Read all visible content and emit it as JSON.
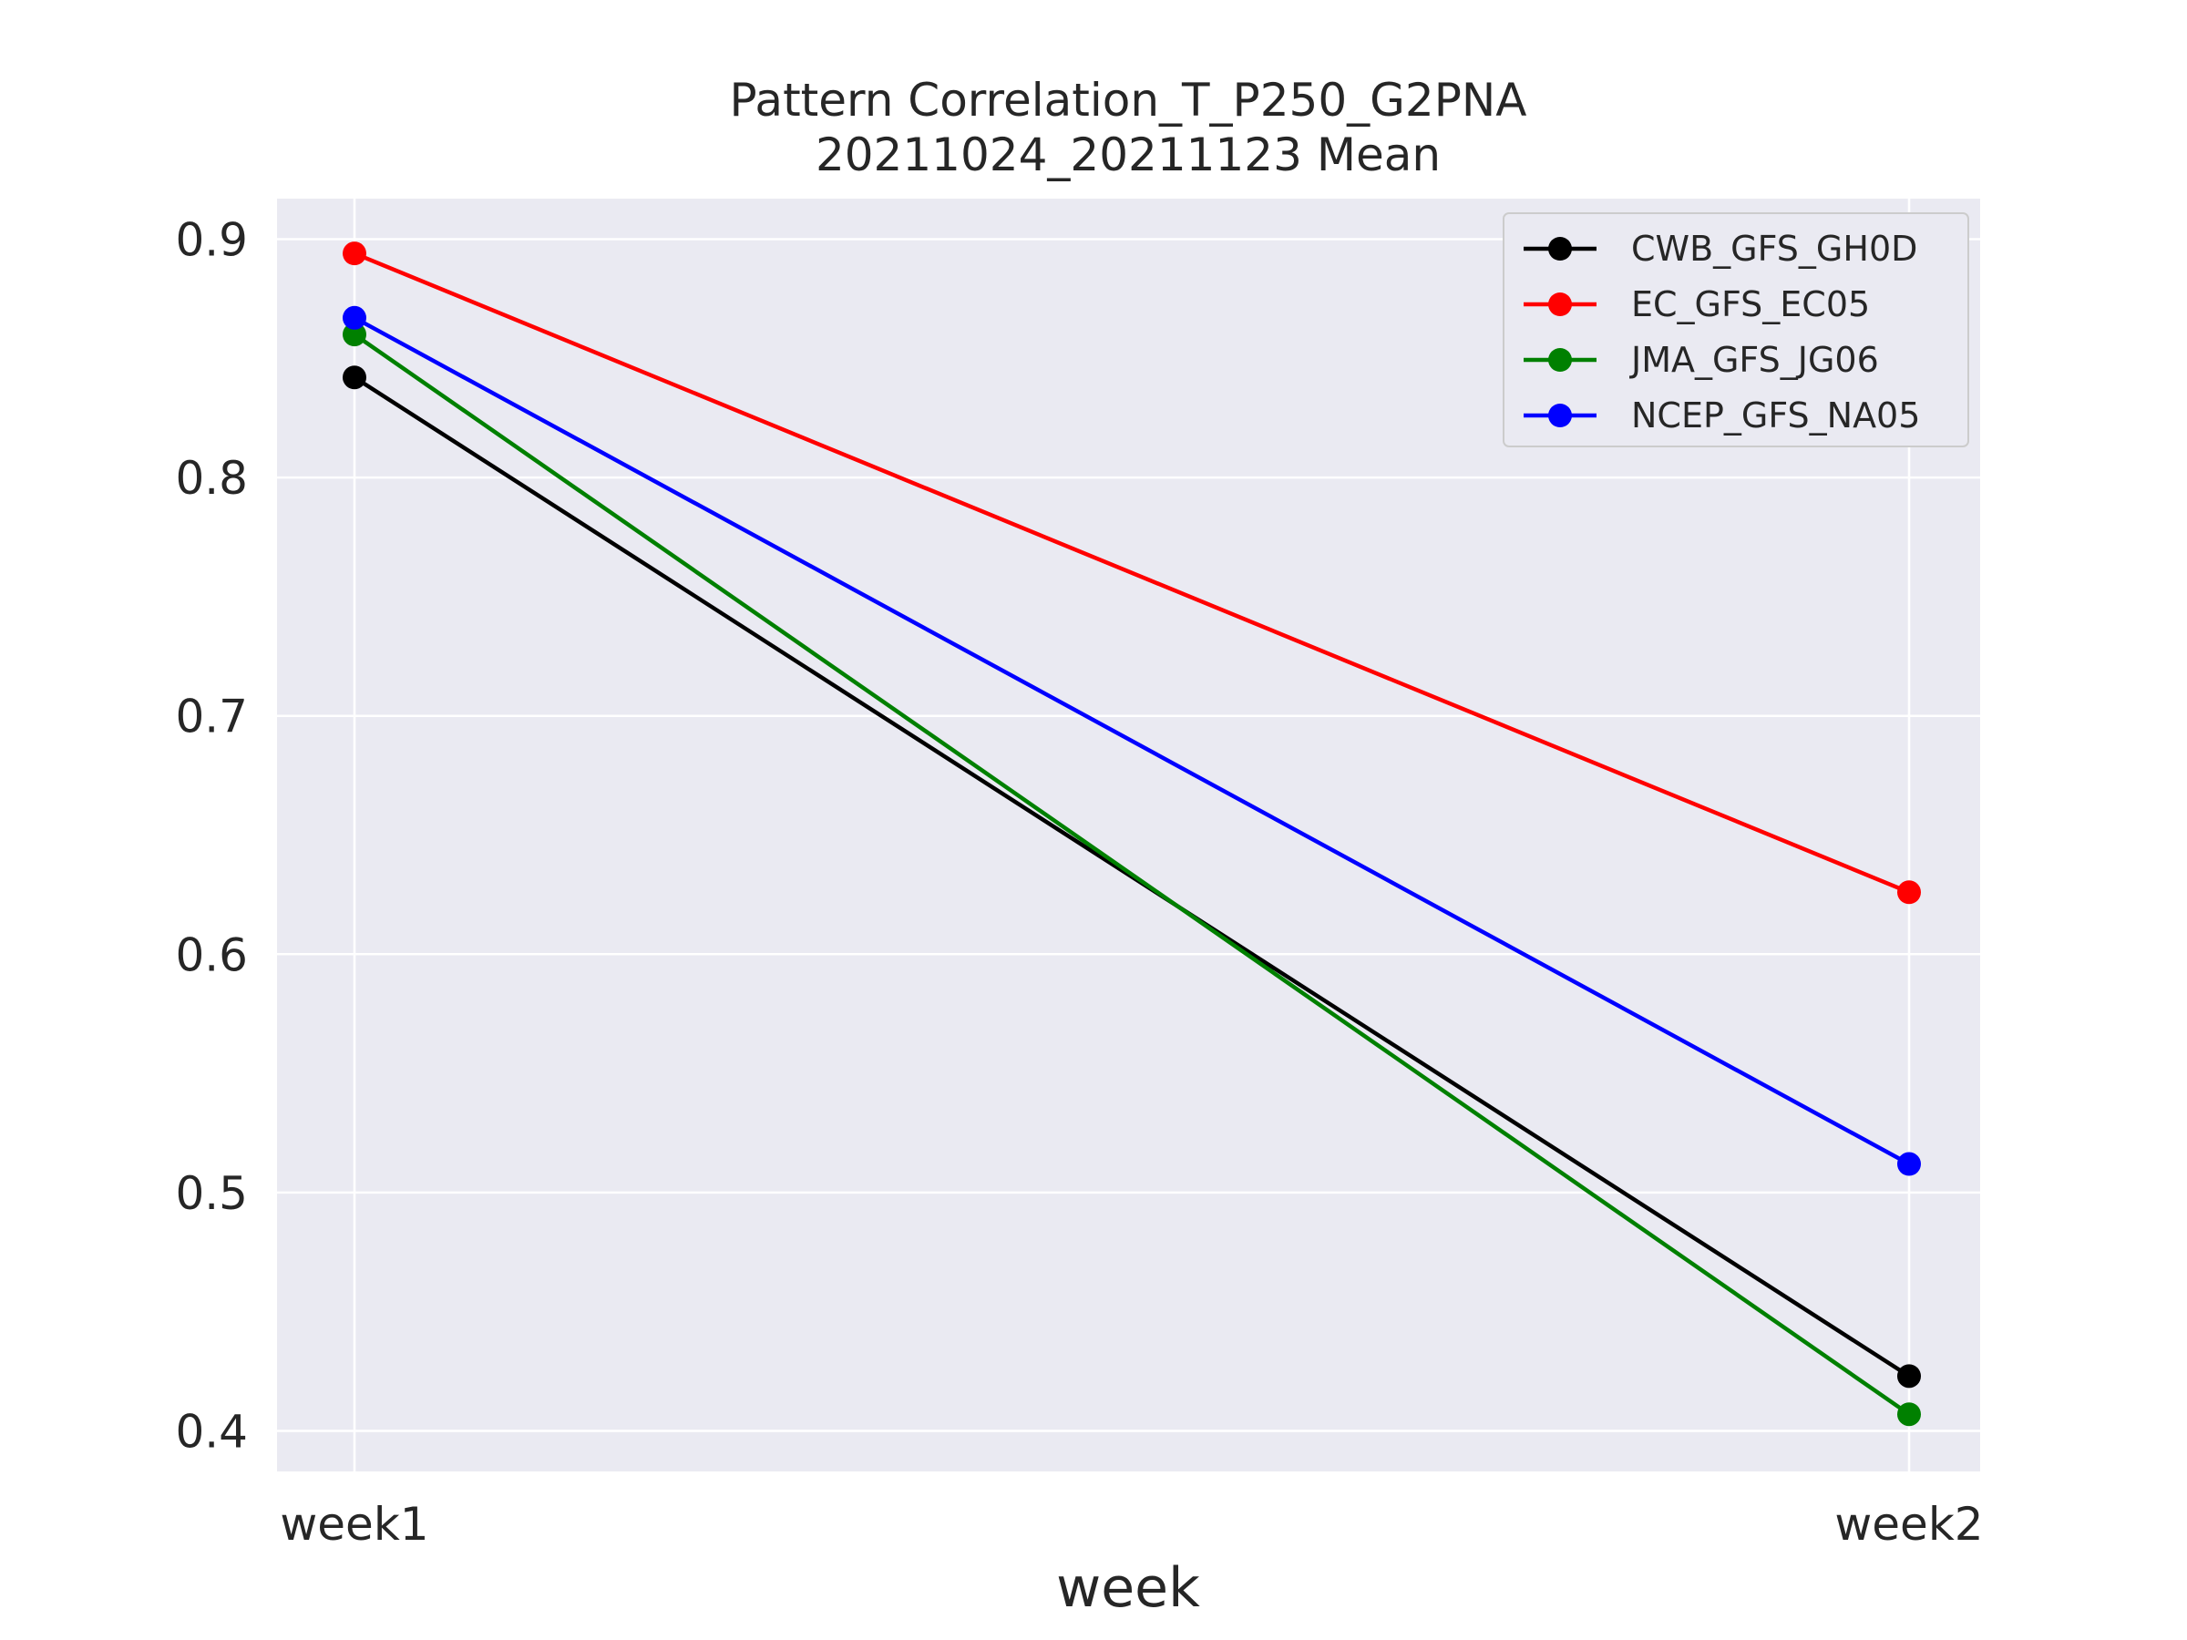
{
  "chart_data": {
    "type": "line",
    "title": "Pattern Correlation_T_P250_G2PNA",
    "subtitle": "20211024_20211123 Mean",
    "xlabel": "week",
    "ylabel": "",
    "categories": [
      "week1",
      "week2"
    ],
    "ylim": [
      0.383,
      0.917
    ],
    "yticks": [
      0.9,
      0.8,
      0.7,
      0.6,
      0.5,
      0.4
    ],
    "ytick_labels": [
      "0.9",
      "0.8",
      "0.7",
      "0.6",
      "0.5",
      "0.4"
    ],
    "grid": true,
    "legend_position": "top-right",
    "series": [
      {
        "name": "CWB_GFS_GH0D",
        "color": "#000000",
        "values": [
          0.842,
          0.423
        ]
      },
      {
        "name": "EC_GFS_EC05",
        "color": "#ff0000",
        "values": [
          0.894,
          0.626
        ]
      },
      {
        "name": "JMA_GFS_JG06",
        "color": "#008000",
        "values": [
          0.86,
          0.407
        ]
      },
      {
        "name": "NCEP_GFS_NA05",
        "color": "#0000ff",
        "values": [
          0.867,
          0.512
        ]
      }
    ]
  }
}
